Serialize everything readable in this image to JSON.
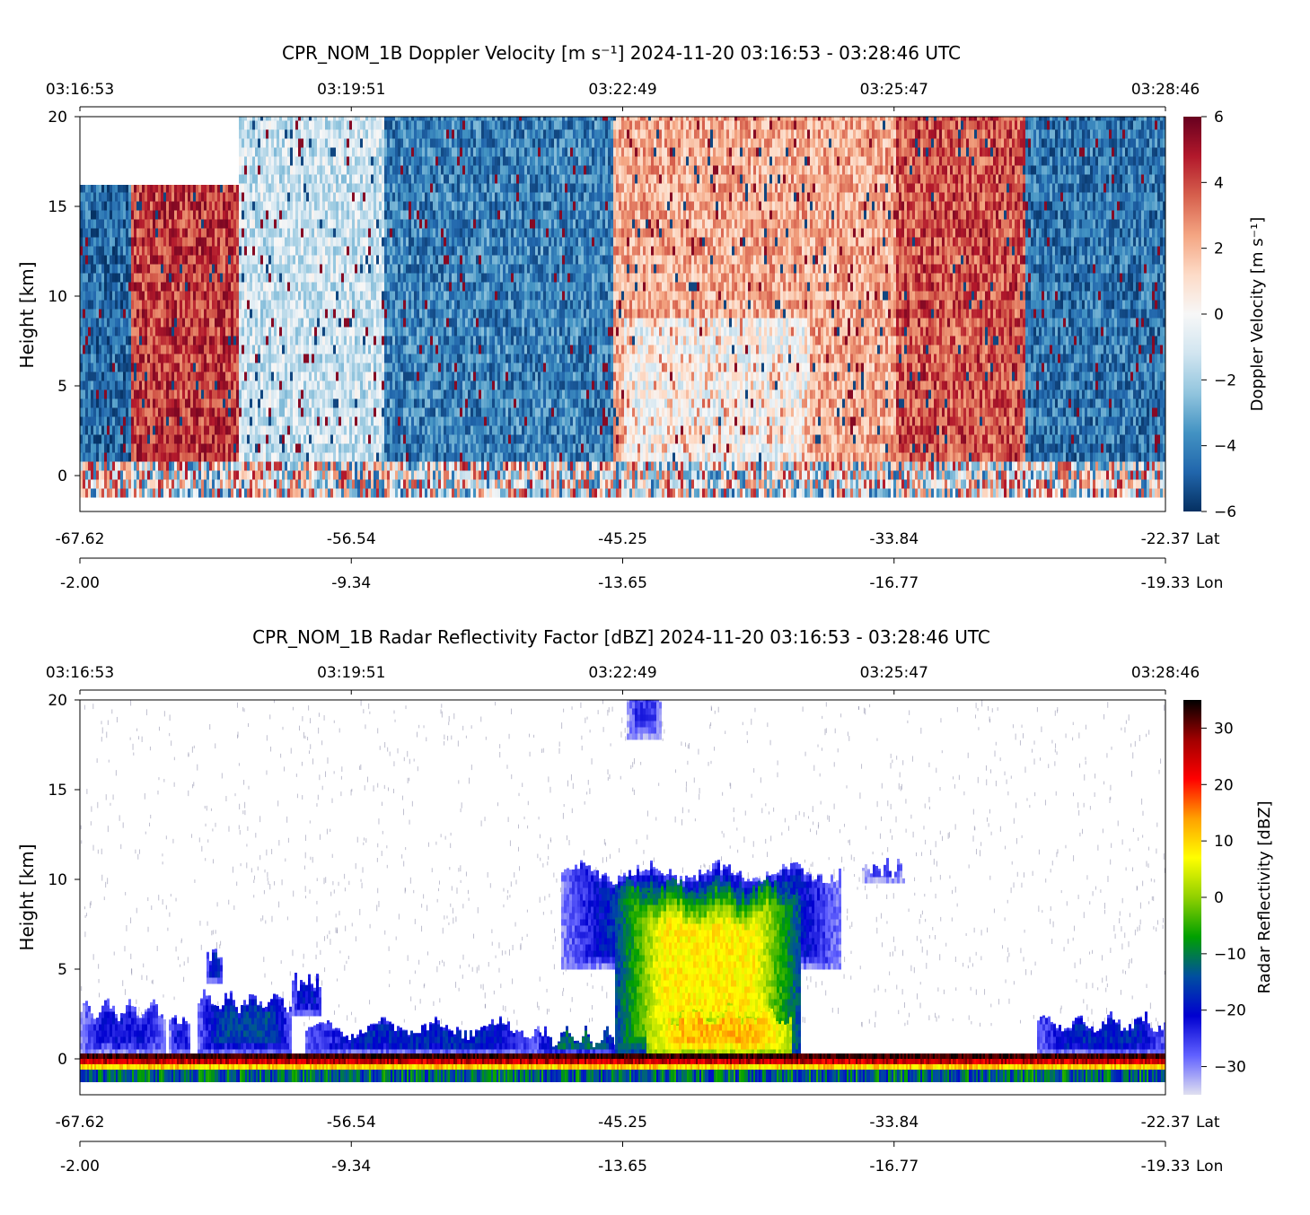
{
  "chart_data": [
    {
      "type": "heatmap",
      "title": "CPR_NOM_1B Doppler Velocity [m s⁻¹]    2024-11-20    03:16:53 - 03:28:46 UTC",
      "ylabel": "Height [km]",
      "ylim": [
        -2,
        20
      ],
      "yticks": [
        "0",
        "5",
        "10",
        "15",
        "20"
      ],
      "time_ticks": [
        "03:16:53",
        "03:19:51",
        "03:22:49",
        "03:25:47",
        "03:28:46"
      ],
      "lat_ticks": [
        "-67.62",
        "-56.54",
        "-45.25",
        "-33.84",
        "-22.37"
      ],
      "lat_label": "Lat",
      "lon_ticks": [
        "-2.00",
        "-9.34",
        "-13.65",
        "-16.77",
        "-19.33"
      ],
      "lon_label": "Lon",
      "colorbar": {
        "label": "Doppler Velocity [m s⁻¹]",
        "range": [
          -6,
          6
        ],
        "ticks": [
          "6",
          "4",
          "2",
          "0",
          "−2",
          "−4",
          "−6"
        ],
        "colormap": [
          "#67001f",
          "#b2182b",
          "#d6604d",
          "#f4a582",
          "#fddbc7",
          "#f7f7f7",
          "#d1e5f0",
          "#92c5de",
          "#4393c3",
          "#2166ac",
          "#053061"
        ]
      },
      "grid": false
    },
    {
      "type": "heatmap",
      "title": "CPR_NOM_1B Radar Reflectivity Factor [dBZ]    2024-11-20    03:16:53 - 03:28:46 UTC",
      "ylabel": "Height [km]",
      "ylim": [
        -2,
        20
      ],
      "yticks": [
        "0",
        "5",
        "10",
        "15",
        "20"
      ],
      "time_ticks": [
        "03:16:53",
        "03:19:51",
        "03:22:49",
        "03:25:47",
        "03:28:46"
      ],
      "lat_ticks": [
        "-67.62",
        "-56.54",
        "-45.25",
        "-33.84",
        "-22.37"
      ],
      "lat_label": "Lat",
      "lon_ticks": [
        "-2.00",
        "-9.34",
        "-13.65",
        "-16.77",
        "-19.33"
      ],
      "lon_label": "Lon",
      "colorbar": {
        "label": "Radar Reflectivity [dBZ]",
        "range": [
          -35,
          35
        ],
        "ticks": [
          "30",
          "20",
          "10",
          "0",
          "−10",
          "−20",
          "−30"
        ],
        "colormap": [
          "#e0e0f0",
          "#6060ff",
          "#0000d0",
          "#004fa0",
          "#00a000",
          "#90d000",
          "#ffff00",
          "#ffa000",
          "#ff0000",
          "#a00000",
          "#000000"
        ]
      },
      "grid": false
    }
  ]
}
